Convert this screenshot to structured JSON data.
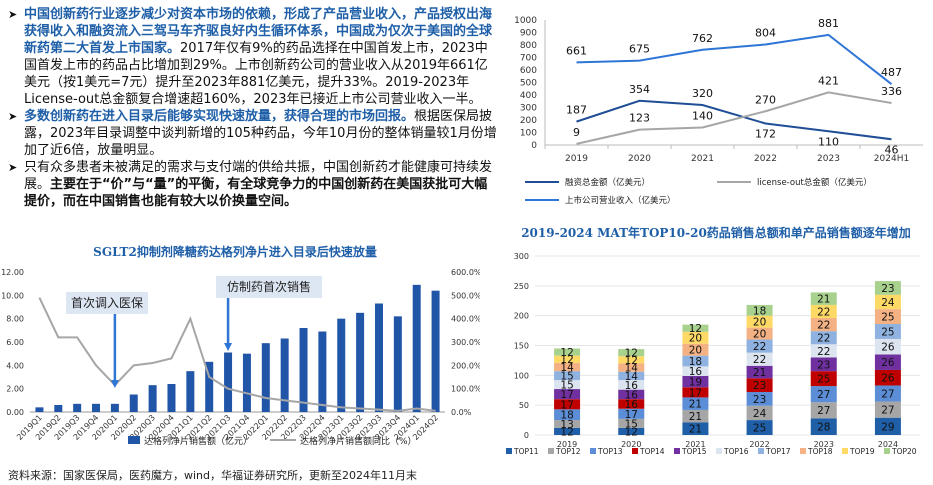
{
  "text": {
    "bullets": [
      {
        "mark": "➤",
        "b1_blue": "中国创新药行业逐步减少对资本市场的依赖，形成了产品营业收入，产品授权出海获得收入和融资流入三驾马车齐驱良好内生循环体系，中国成为仅次于美国的全球新药第二大首发上市国家。",
        "b1_rest": "2017年仅有9%的药品选择在中国首发上市，2023中国首发上市的药品占比增加到29%。上市创新药公司的营业收入从2019年661亿美元（按1美元=7元）提升至2023年881亿美元，提升33%。2019-2023年License-out总金额复合增速超160%，2023年已接近上市公司营业收入一半。"
      },
      {
        "mark": "➤",
        "b2_blue": "多数创新药在进入目录后能够实现快速放量，获得合理的市场回报。",
        "b2_rest": "根据医保局披露，2023年目录调整中谈判新增的105种药品，今年10月份的整体销量较1月份增加了近6倍，放量明显。"
      },
      {
        "mark": "➤",
        "b3_plain": "只有众多患者未被满足的需求与支付端的供给共振，中国创新药才能健康可持续发展。",
        "b3_bold": "主要在于“价”与“量”的平衡，有全球竞争力的中国创新药在美国获批可大幅提价，而在中国销售也能有较大以价换量空间。"
      }
    ],
    "source": "资料来源：国家医保局，医药魔方，wind，华福证券研究所，更新至2024年11月末"
  },
  "chart_data": [
    {
      "type": "line",
      "title": "",
      "x": [
        "2019",
        "2020",
        "2021",
        "2022",
        "2023",
        "2024H1"
      ],
      "series": [
        {
          "name": "融资总金额（亿美元）",
          "color": "#1f4e96",
          "values": [
            187,
            354,
            320,
            172,
            110,
            46
          ],
          "labels": [
            "187",
            "354",
            "320",
            "172",
            "110",
            "46"
          ]
        },
        {
          "name": "license-out总金额（亿美元）",
          "color": "#a6a6a6",
          "values": [
            9,
            123,
            140,
            270,
            421,
            336
          ],
          "labels": [
            "9",
            "123",
            "140",
            "270",
            "421",
            "336"
          ]
        },
        {
          "name": "上市公司营业收入（亿美元）",
          "color": "#2e75d6",
          "values": [
            661,
            675,
            762,
            804,
            881,
            487
          ],
          "labels": [
            "661",
            "675",
            "762",
            "804",
            "881",
            "487"
          ]
        }
      ],
      "yticks": [
        "0",
        "100",
        "200",
        "300",
        "400",
        "500",
        "600",
        "700",
        "800",
        "900",
        "1000"
      ],
      "ylim": [
        0,
        1000
      ]
    },
    {
      "type": "bar",
      "title": "SGLT2抑制剂降糖药达格列净片进入目录后快速放量",
      "categories": [
        "2019Q1",
        "2019Q2",
        "2019Q3",
        "2019Q4",
        "2020Q1",
        "2020Q2",
        "2020Q3",
        "2020Q4",
        "2021Q1",
        "2021Q2",
        "2021Q3",
        "2021Q4",
        "2022Q1",
        "2022Q2",
        "2022Q3",
        "2022Q4",
        "2023Q1",
        "2023Q2",
        "2023Q3",
        "2023Q4",
        "2024Q1",
        "2024Q2"
      ],
      "tick_labels": [
        "2019Q1",
        "2019Q2",
        "2019Q3",
        "2019Q4",
        "2020Q1",
        "2020Q2",
        "2020Q3",
        "2020Q4",
        "2021Q1",
        "2021Q2",
        "2021Q3",
        "2021Q4",
        "2022Q1",
        "2022Q2",
        "2022Q3",
        "2022Q4",
        "2023Q1",
        "2023Q2",
        "2023Q3",
        "2023Q4",
        "2024Q1",
        "2024Q2"
      ],
      "series": [
        {
          "name": "达格列净片销售额（亿元）",
          "color": "#2155a8",
          "axis": "left",
          "values": [
            0.4,
            0.6,
            0.7,
            0.7,
            0.7,
            1.5,
            2.3,
            2.4,
            3.5,
            4.3,
            5.1,
            5.0,
            5.9,
            6.3,
            7.2,
            6.9,
            8.0,
            8.5,
            9.3,
            8.2,
            10.9,
            10.4
          ]
        },
        {
          "name": "达格列净片销售额同比",
          "color": "#a6a6a6",
          "axis": "right",
          "values": [
            490,
            320,
            320,
            200,
            115,
            200,
            210,
            230,
            400,
            150,
            100,
            80,
            60,
            50,
            40,
            30,
            20,
            15,
            10,
            5,
            15,
            5
          ]
        }
      ],
      "left_ticks": [
        "0.00",
        "2.00",
        "4.00",
        "6.00",
        "8.00",
        "10.00",
        "12.00"
      ],
      "right_ticks": [
        "0.0%",
        "100.0%",
        "200.0%",
        "300.0%",
        "400.0%",
        "500.0%",
        "600.0%"
      ],
      "ylim": [
        0,
        12
      ],
      "y2lim": [
        0,
        600
      ],
      "annotations": [
        "首次调入医保",
        "仿制药首次销售"
      ],
      "legend": [
        "达格列净片销售额（亿元）",
        "达格列净片销售额同比（%）"
      ]
    },
    {
      "type": "bar",
      "title": "2019-2024 MAT年TOP10-20药品销售总额和单产品销售额逐年增加",
      "categories": [
        "2019",
        "2020",
        "2021",
        "2022",
        "2023",
        "2024"
      ],
      "series": [
        {
          "name": "TOP11",
          "color": "#1f5fa8",
          "values": [
            12,
            12,
            21,
            25,
            28,
            29
          ]
        },
        {
          "name": "TOP12",
          "color": "#a6a6a6",
          "values": [
            13,
            15,
            21,
            24,
            27,
            27
          ]
        },
        {
          "name": "TOP13",
          "color": "#5b8ed6",
          "values": [
            18,
            17,
            21,
            23,
            27,
            27
          ]
        },
        {
          "name": "TOP14",
          "color": "#c00000",
          "values": [
            17,
            16,
            17,
            23,
            25,
            26
          ]
        },
        {
          "name": "TOP15",
          "color": "#7030a0",
          "values": [
            17,
            16,
            19,
            21,
            23,
            26
          ]
        },
        {
          "name": "TOP16",
          "color": "#dce4f0",
          "values": [
            15,
            16,
            16,
            22,
            22,
            26
          ]
        },
        {
          "name": "TOP17",
          "color": "#8fb2e0",
          "values": [
            15,
            14,
            18,
            22,
            22,
            25
          ]
        },
        {
          "name": "TOP18",
          "color": "#f4b183",
          "values": [
            14,
            14,
            20,
            20,
            22,
            25
          ]
        },
        {
          "name": "TOP19",
          "color": "#ffd966",
          "values": [
            12,
            12,
            20,
            20,
            22,
            24
          ]
        },
        {
          "name": "TOP20",
          "color": "#a9d18e",
          "values": [
            12,
            12,
            12,
            18,
            21,
            23
          ]
        }
      ],
      "yticks": [
        "0",
        "50",
        "100",
        "150",
        "200",
        "250",
        "300"
      ],
      "ylim": [
        0,
        300
      ]
    }
  ]
}
